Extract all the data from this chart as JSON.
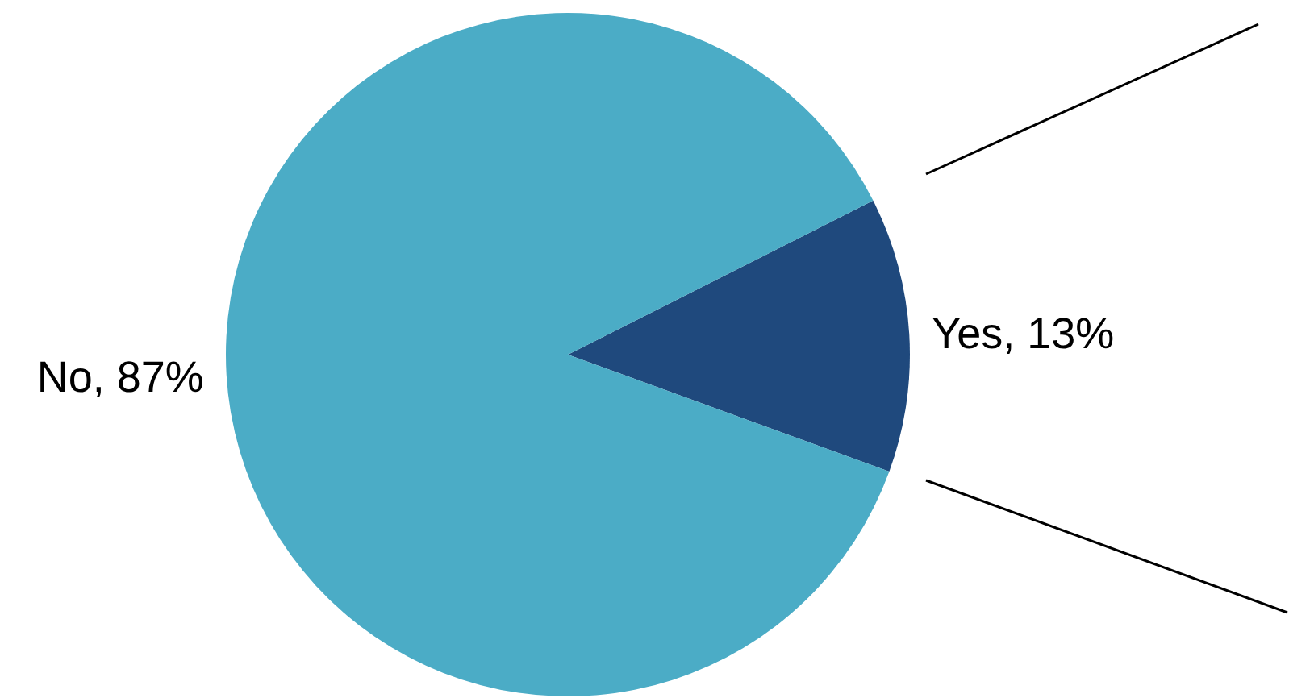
{
  "chart_data": {
    "type": "pie",
    "categories": [
      "Yes",
      "No"
    ],
    "values": [
      13,
      87
    ],
    "colors": [
      "#1f497d",
      "#4bacc6"
    ],
    "value_labels": [
      "13%",
      "87%"
    ],
    "legend": false
  }
}
